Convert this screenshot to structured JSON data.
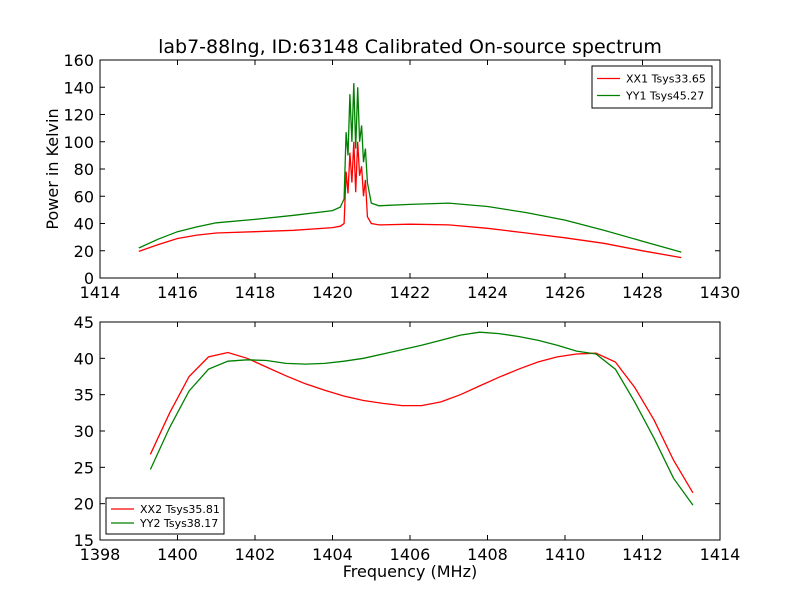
{
  "figure": {
    "title": "lab7-88lng, ID:63148 Calibrated On-source spectrum",
    "xlabel": "Frequency (MHz)"
  },
  "chart_data": [
    {
      "type": "line",
      "title": "lab7-88lng, ID:63148 Calibrated On-source spectrum",
      "xlabel": "",
      "ylabel": "Power in Kelvin",
      "xlim": [
        1414,
        1430
      ],
      "ylim": [
        0,
        160
      ],
      "xticks": [
        1414,
        1416,
        1418,
        1420,
        1422,
        1424,
        1426,
        1428,
        1430
      ],
      "yticks": [
        0,
        20,
        40,
        60,
        80,
        100,
        120,
        140,
        160
      ],
      "legend_position": "top-right",
      "grid": false,
      "series": [
        {
          "name": "XX1 Tsys33.65",
          "color": "#ff0000",
          "x": [
            1415.0,
            1415.5,
            1416.0,
            1416.5,
            1417.0,
            1418.0,
            1419.0,
            1420.0,
            1420.2,
            1420.3,
            1420.35,
            1420.4,
            1420.45,
            1420.5,
            1420.55,
            1420.6,
            1420.65,
            1420.7,
            1420.75,
            1420.8,
            1420.85,
            1420.9,
            1421.0,
            1421.2,
            1422.0,
            1423.0,
            1424.0,
            1425.0,
            1426.0,
            1427.0,
            1428.0,
            1429.0
          ],
          "y": [
            19.5,
            24.5,
            29,
            31.5,
            33,
            34,
            35,
            37,
            38,
            40,
            78,
            62,
            92,
            70,
            100,
            63,
            100,
            75,
            82,
            60,
            72,
            45,
            40,
            39,
            39.5,
            39,
            36.5,
            33,
            29.5,
            25.5,
            20,
            15
          ]
        },
        {
          "name": "YY1 Tsys45.27",
          "color": "#008000",
          "x": [
            1415.0,
            1415.5,
            1416.0,
            1416.5,
            1417.0,
            1418.0,
            1419.0,
            1420.0,
            1420.2,
            1420.3,
            1420.35,
            1420.4,
            1420.45,
            1420.5,
            1420.55,
            1420.6,
            1420.65,
            1420.7,
            1420.75,
            1420.8,
            1420.85,
            1420.9,
            1421.0,
            1421.2,
            1422.0,
            1423.0,
            1424.0,
            1425.0,
            1426.0,
            1427.0,
            1428.0,
            1429.0
          ],
          "y": [
            22,
            28.5,
            34,
            37.5,
            40.5,
            43,
            46,
            49.5,
            52,
            58,
            107,
            90,
            135,
            100,
            143,
            95,
            140,
            100,
            112,
            85,
            95,
            70,
            55,
            53,
            54,
            55,
            52.5,
            48,
            42.5,
            35,
            27,
            19
          ]
        }
      ]
    },
    {
      "type": "line",
      "title": "",
      "xlabel": "Frequency (MHz)",
      "ylabel": "",
      "xlim": [
        1398,
        1414
      ],
      "ylim": [
        15,
        45
      ],
      "xticks": [
        1398,
        1400,
        1402,
        1404,
        1406,
        1408,
        1410,
        1412,
        1414
      ],
      "yticks": [
        15,
        20,
        25,
        30,
        35,
        40,
        45
      ],
      "legend_position": "bottom-left",
      "grid": false,
      "series": [
        {
          "name": "XX2 Tsys35.81",
          "color": "#ff0000",
          "x": [
            1399.3,
            1399.8,
            1400.3,
            1400.8,
            1401.3,
            1401.8,
            1402.3,
            1402.8,
            1403.3,
            1403.8,
            1404.3,
            1404.8,
            1405.3,
            1405.8,
            1406.3,
            1406.8,
            1407.3,
            1407.8,
            1408.3,
            1408.8,
            1409.3,
            1409.8,
            1410.3,
            1410.8,
            1411.3,
            1411.8,
            1412.3,
            1412.8,
            1413.3
          ],
          "y": [
            26.8,
            32.5,
            37.5,
            40.2,
            40.8,
            40.0,
            38.8,
            37.6,
            36.5,
            35.6,
            34.8,
            34.2,
            33.8,
            33.5,
            33.5,
            34.0,
            35.0,
            36.2,
            37.4,
            38.5,
            39.5,
            40.2,
            40.6,
            40.7,
            39.5,
            36.0,
            31.5,
            26.0,
            21.5
          ]
        },
        {
          "name": "YY2 Tsys38.17",
          "color": "#008000",
          "x": [
            1399.3,
            1399.8,
            1400.3,
            1400.8,
            1401.3,
            1401.8,
            1402.3,
            1402.8,
            1403.3,
            1403.8,
            1404.3,
            1404.8,
            1405.3,
            1405.8,
            1406.3,
            1406.8,
            1407.3,
            1407.8,
            1408.3,
            1408.8,
            1409.3,
            1409.8,
            1410.3,
            1410.8,
            1411.3,
            1411.8,
            1412.3,
            1412.8,
            1413.3
          ],
          "y": [
            24.7,
            30.5,
            35.5,
            38.5,
            39.6,
            39.8,
            39.7,
            39.3,
            39.2,
            39.3,
            39.6,
            40.0,
            40.6,
            41.2,
            41.8,
            42.5,
            43.2,
            43.6,
            43.4,
            43.0,
            42.5,
            41.8,
            41.0,
            40.6,
            38.5,
            34.0,
            29.0,
            23.5,
            19.8
          ]
        }
      ]
    }
  ]
}
